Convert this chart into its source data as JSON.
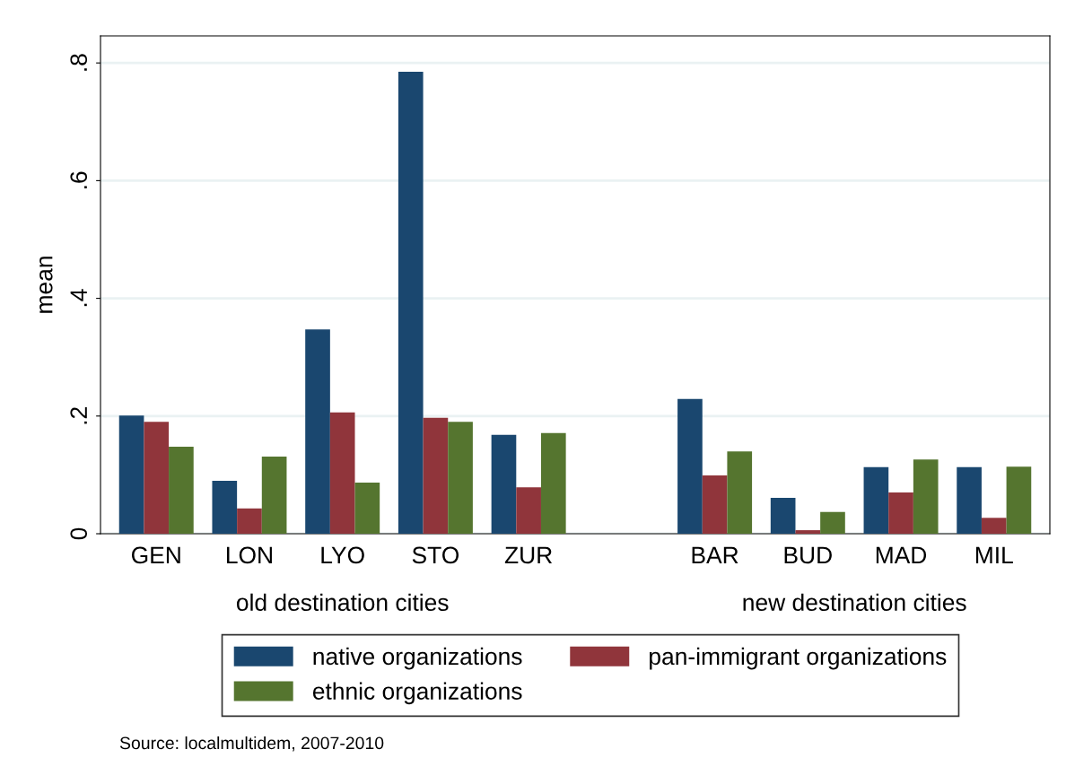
{
  "chart_data": {
    "type": "bar",
    "ylabel": "mean",
    "categories": [
      "GEN",
      "LON",
      "LYO",
      "STO",
      "ZUR",
      null,
      "BAR",
      "BUD",
      "MAD",
      "MIL"
    ],
    "series": [
      {
        "name": "native organizations",
        "color": "#1a476f",
        "values": [
          0.201,
          0.09,
          0.347,
          0.785,
          0.168,
          null,
          0.229,
          0.061,
          0.113,
          0.113
        ]
      },
      {
        "name": "pan-immigrant organizations",
        "color": "#90353b",
        "values": [
          0.19,
          0.043,
          0.206,
          0.197,
          0.079,
          null,
          0.099,
          0.006,
          0.07,
          0.027
        ]
      },
      {
        "name": "ethnic organizations",
        "color": "#55752f",
        "values": [
          0.148,
          0.131,
          0.087,
          0.19,
          0.171,
          null,
          0.14,
          0.037,
          0.126,
          0.114
        ]
      }
    ],
    "ylim": [
      0,
      0.846
    ],
    "yticks": [
      {
        "value": 0,
        "label": "0"
      },
      {
        "value": 0.2,
        "label": ".2"
      },
      {
        "value": 0.4,
        "label": ".4"
      },
      {
        "value": 0.6,
        "label": ".6"
      },
      {
        "value": 0.8,
        "label": ".8"
      }
    ],
    "grid": "y",
    "legend": "bottom",
    "annotations": [
      "old destination cities",
      "new destination cities",
      "Source: localmultidem, 2007-2010"
    ]
  }
}
